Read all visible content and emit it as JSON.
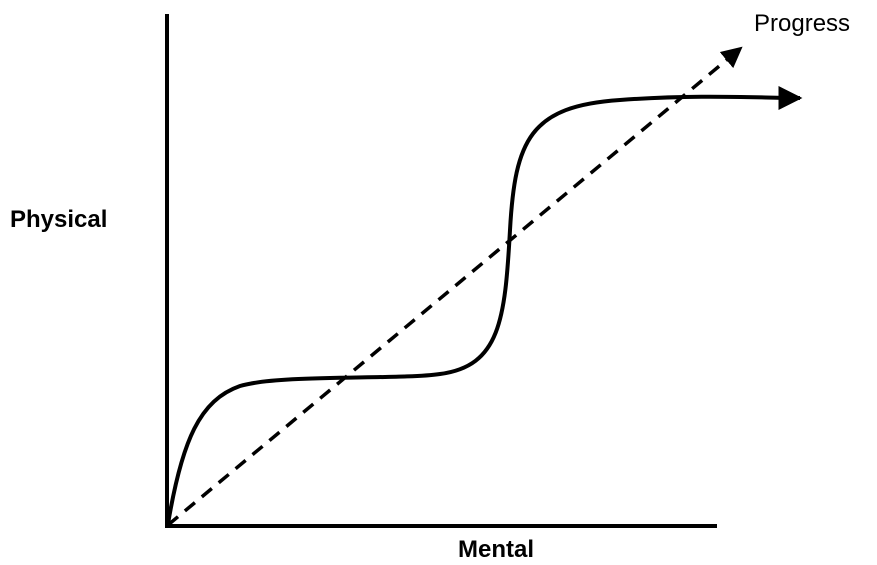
{
  "labels": {
    "y_axis": "Physical",
    "x_axis": "Mental",
    "dashed_line": "Progress"
  },
  "colors": {
    "stroke": "#000000",
    "background": "#ffffff"
  }
}
